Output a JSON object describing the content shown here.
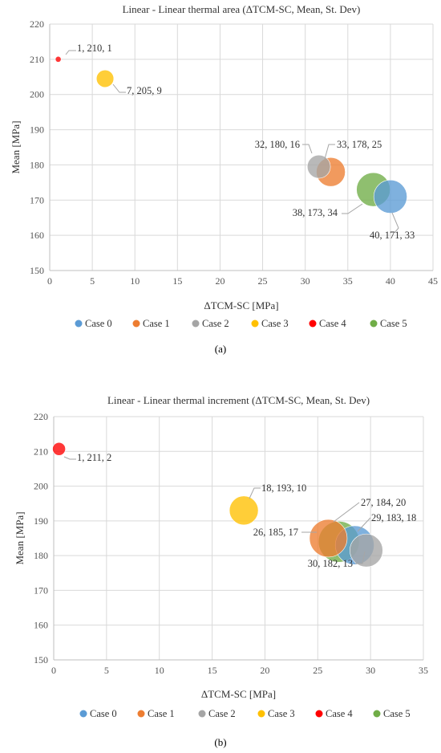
{
  "chart_data": [
    {
      "type": "bubble",
      "title": "Linear - Linear thermal area (ΔTCM-SC, Mean, St. Dev)",
      "xlabel": "ΔTCM-SC [MPa]",
      "ylabel": "Mean [MPa]",
      "xlim": [
        0,
        45
      ],
      "ylim": [
        150,
        220
      ],
      "xticks": [
        0,
        5,
        10,
        15,
        20,
        25,
        30,
        35,
        40,
        45
      ],
      "yticks": [
        150,
        160,
        170,
        180,
        190,
        200,
        210,
        220
      ],
      "grid": true,
      "legend_position": "bottom",
      "series": [
        {
          "name": "Case 0",
          "color": "#5b9bd5",
          "points": [
            {
              "x": 40,
              "y": 171,
              "size": 33,
              "label": "40, 171, 33"
            }
          ]
        },
        {
          "name": "Case 1",
          "color": "#ed7d31",
          "points": [
            {
              "x": 33,
              "y": 178,
              "size": 25,
              "label": "33, 178, 25"
            }
          ]
        },
        {
          "name": "Case 2",
          "color": "#a5a5a5",
          "points": [
            {
              "x": 31.6,
              "y": 179.5,
              "size": 16,
              "label": "32, 180, 16"
            }
          ]
        },
        {
          "name": "Case 3",
          "color": "#ffc000",
          "points": [
            {
              "x": 6.5,
              "y": 204.5,
              "size": 9,
              "label": "7, 205, 9"
            }
          ]
        },
        {
          "name": "Case 4",
          "color": "#ff0000",
          "points": [
            {
              "x": 1,
              "y": 210,
              "size": 1,
              "label": "1, 210, 1"
            }
          ]
        },
        {
          "name": "Case 5",
          "color": "#70ad47",
          "points": [
            {
              "x": 38,
              "y": 173,
              "size": 34,
              "label": "38, 173, 34"
            }
          ]
        }
      ],
      "caption": "(a)"
    },
    {
      "type": "bubble",
      "title": "Linear - Linear thermal increment (ΔTCM-SC, Mean, St. Dev)",
      "xlabel": "ΔTCM-SC [MPa]",
      "ylabel": "Mean [MPa]",
      "xlim": [
        0,
        35
      ],
      "ylim": [
        150,
        220
      ],
      "xticks": [
        0,
        5,
        10,
        15,
        20,
        25,
        30,
        35
      ],
      "yticks": [
        150,
        160,
        170,
        180,
        190,
        200,
        210,
        220
      ],
      "grid": true,
      "legend_position": "bottom",
      "series": [
        {
          "name": "Case 0",
          "color": "#5b9bd5",
          "points": [
            {
              "x": 28.5,
              "y": 183,
              "size": 18,
              "label": "29, 183, 18"
            }
          ]
        },
        {
          "name": "Case 1",
          "color": "#ed7d31",
          "points": [
            {
              "x": 26,
              "y": 185,
              "size": 17,
              "label": "26, 185, 17"
            }
          ]
        },
        {
          "name": "Case 2",
          "color": "#a5a5a5",
          "points": [
            {
              "x": 29.6,
              "y": 181.5,
              "size": 13,
              "label": "30, 182, 13"
            }
          ]
        },
        {
          "name": "Case 3",
          "color": "#ffc000",
          "points": [
            {
              "x": 18,
              "y": 193,
              "size": 10,
              "label": "18, 193, 10"
            }
          ]
        },
        {
          "name": "Case 4",
          "color": "#ff0000",
          "points": [
            {
              "x": 0.5,
              "y": 210.7,
              "size": 2,
              "label": "1, 211, 2"
            }
          ]
        },
        {
          "name": "Case 5",
          "color": "#70ad47",
          "points": [
            {
              "x": 27,
              "y": 184,
              "size": 20,
              "label": "27, 184, 20"
            }
          ]
        }
      ],
      "caption": "(b)"
    }
  ]
}
